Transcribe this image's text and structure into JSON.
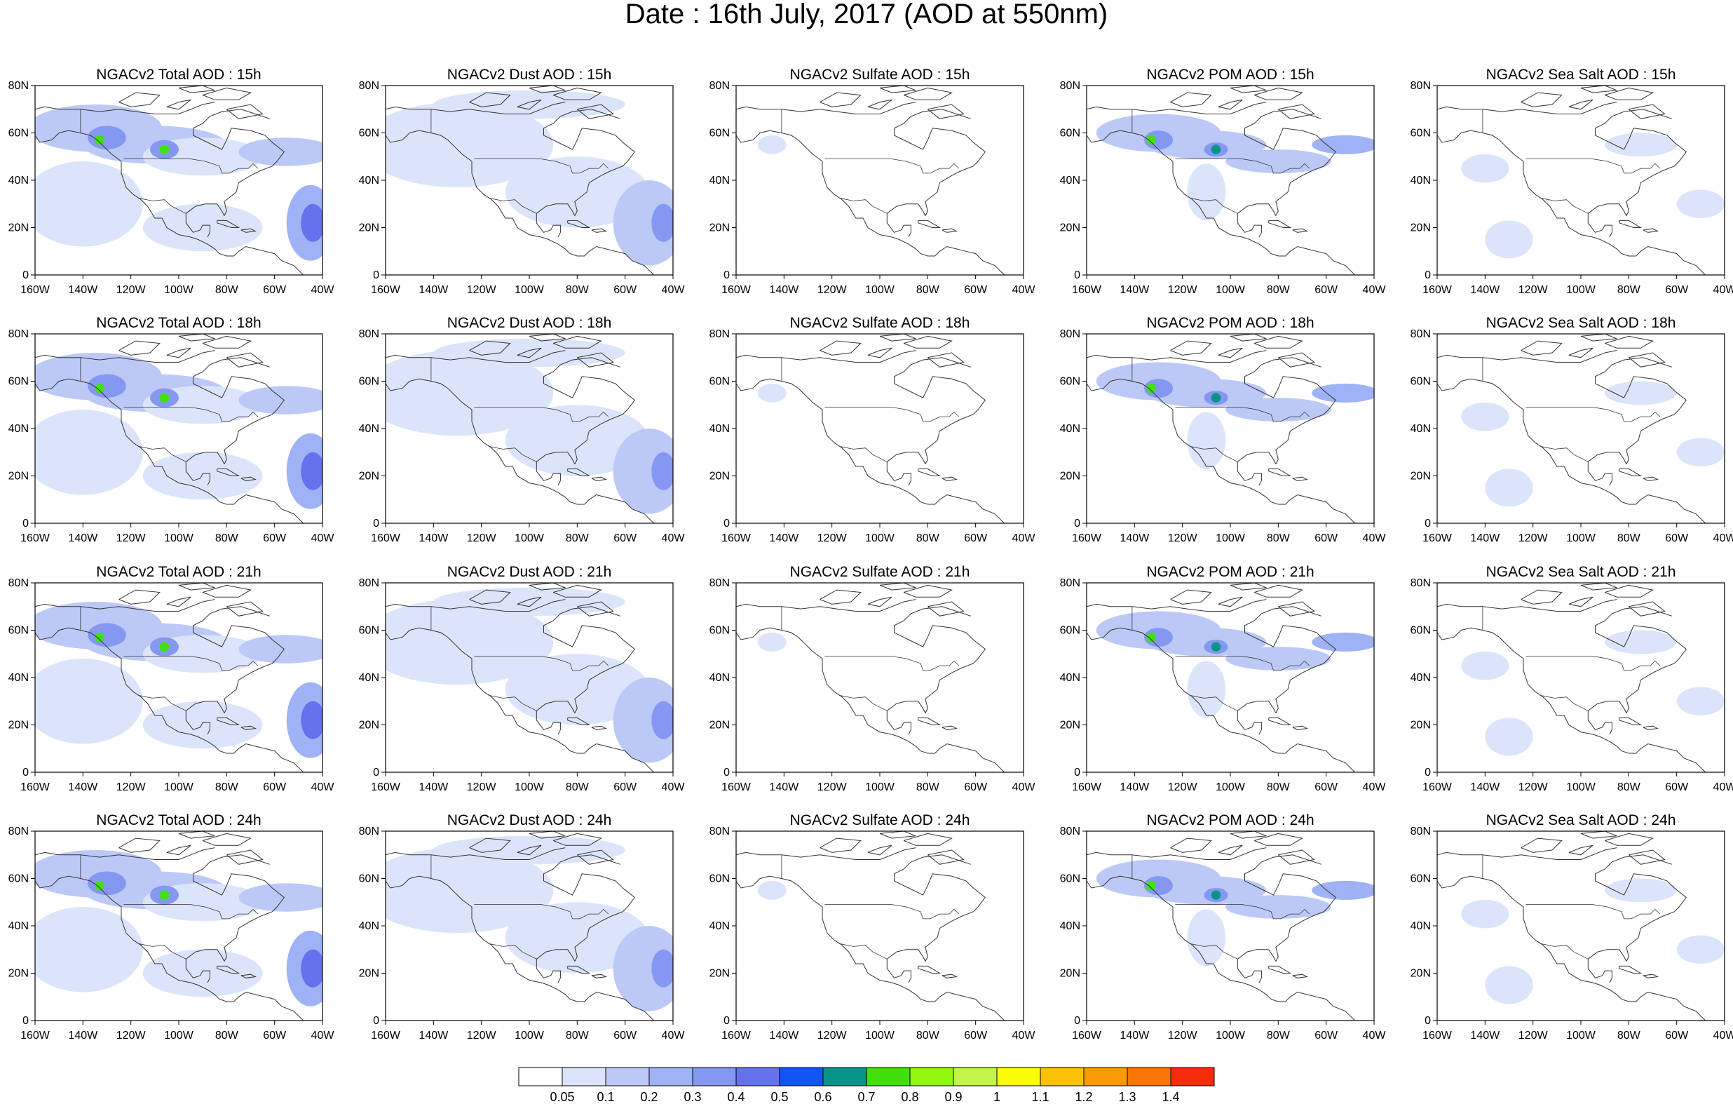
{
  "title": "Date : 16th July, 2017 (AOD at 550nm)",
  "map": {
    "lat_ticks": [
      "0",
      "20N",
      "40N",
      "60N",
      "80N"
    ],
    "lon_ticks": [
      "160W",
      "140W",
      "120W",
      "100W",
      "80W",
      "60W",
      "40W"
    ],
    "lat_range": [
      0,
      80
    ],
    "lon_range": [
      -160,
      -40
    ]
  },
  "panels": [
    {
      "title": "NGACv2 Total AOD : 15h",
      "species": "total",
      "hour": "15h"
    },
    {
      "title": "NGACv2 Dust AOD : 15h",
      "species": "dust",
      "hour": "15h"
    },
    {
      "title": "NGACv2 Sulfate AOD : 15h",
      "species": "sulfate",
      "hour": "15h"
    },
    {
      "title": "NGACv2 POM AOD : 15h",
      "species": "pom",
      "hour": "15h"
    },
    {
      "title": "NGACv2 Sea Salt AOD : 15h",
      "species": "seasalt",
      "hour": "15h"
    },
    {
      "title": "NGACv2 Total AOD : 18h",
      "species": "total",
      "hour": "18h"
    },
    {
      "title": "NGACv2 Dust AOD : 18h",
      "species": "dust",
      "hour": "18h"
    },
    {
      "title": "NGACv2 Sulfate AOD : 18h",
      "species": "sulfate",
      "hour": "18h"
    },
    {
      "title": "NGACv2 POM AOD : 18h",
      "species": "pom",
      "hour": "18h"
    },
    {
      "title": "NGACv2 Sea Salt AOD : 18h",
      "species": "seasalt",
      "hour": "18h"
    },
    {
      "title": "NGACv2 Total AOD : 21h",
      "species": "total",
      "hour": "21h"
    },
    {
      "title": "NGACv2 Dust AOD : 21h",
      "species": "dust",
      "hour": "21h"
    },
    {
      "title": "NGACv2 Sulfate AOD : 21h",
      "species": "sulfate",
      "hour": "21h"
    },
    {
      "title": "NGACv2 POM AOD : 21h",
      "species": "pom",
      "hour": "21h"
    },
    {
      "title": "NGACv2 Sea Salt AOD : 21h",
      "species": "seasalt",
      "hour": "21h"
    },
    {
      "title": "NGACv2 Total AOD : 24h",
      "species": "total",
      "hour": "24h"
    },
    {
      "title": "NGACv2 Dust AOD : 24h",
      "species": "dust",
      "hour": "24h"
    },
    {
      "title": "NGACv2 Sulfate AOD : 24h",
      "species": "sulfate",
      "hour": "24h"
    },
    {
      "title": "NGACv2 POM AOD : 24h",
      "species": "pom",
      "hour": "24h"
    },
    {
      "title": "NGACv2 Sea Salt  AOD : 24h",
      "species": "seasalt",
      "hour": "24h"
    }
  ],
  "colorbar": {
    "labels": [
      "0.05",
      "0.1",
      "0.2",
      "0.3",
      "0.4",
      "0.5",
      "0.6",
      "0.7",
      "0.8",
      "0.9",
      "1",
      "1.1",
      "1.2",
      "1.3",
      "1.4"
    ],
    "colors": [
      "#ffffff",
      "#dce4fb",
      "#bcc9f7",
      "#9fb2f5",
      "#8598f1",
      "#6671ee",
      "#0f56f2",
      "#079488",
      "#40e10b",
      "#91f70f",
      "#c2f449",
      "#fbfc07",
      "#fcc104",
      "#fa9b02",
      "#f97506",
      "#f52c09"
    ]
  }
}
